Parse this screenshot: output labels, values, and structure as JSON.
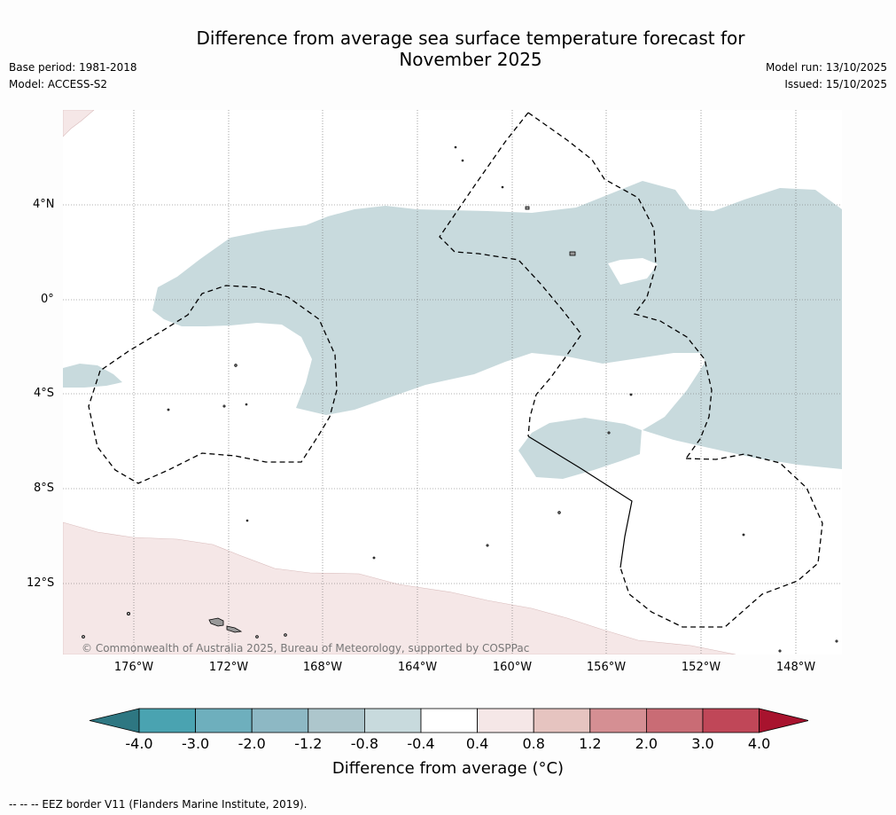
{
  "title_line1": "Difference from average sea surface temperature forecast for",
  "title_line2": "November 2025",
  "base_period": "Base period: 1981-2018",
  "model": "Model: ACCESS-S2",
  "model_run": "Model run: 13/10/2025",
  "issued": "Issued: 15/10/2025",
  "latitude_labels": [
    "4°N",
    "0°",
    "4°S",
    "8°S",
    "12°S"
  ],
  "longitude_labels": [
    "176°W",
    "172°W",
    "168°W",
    "164°W",
    "160°W",
    "156°W",
    "152°W",
    "148°W"
  ],
  "copyright": "© Commonwealth of Australia 2025, Bureau of Meteorology, supported by COSPPac",
  "colorbar": {
    "ticks": [
      "-4.0",
      "-3.0",
      "-2.0",
      "-1.2",
      "-0.8",
      "-0.4",
      "0.4",
      "0.8",
      "1.2",
      "2.0",
      "3.0",
      "4.0"
    ],
    "colors": [
      "#2e7782",
      "#4aa3b1",
      "#6eafbd",
      "#8db8c4",
      "#adc6cc",
      "#c8dadd",
      "#ffffff",
      "#f5e7e7",
      "#e6c4c0",
      "#d58f93",
      "#c96c75",
      "#c04758",
      "#a8132e"
    ],
    "label": "Difference from average (°C)"
  },
  "footer": "-- -- -- EEZ border V11 (Flanders Marine Institute, 2019)."
}
